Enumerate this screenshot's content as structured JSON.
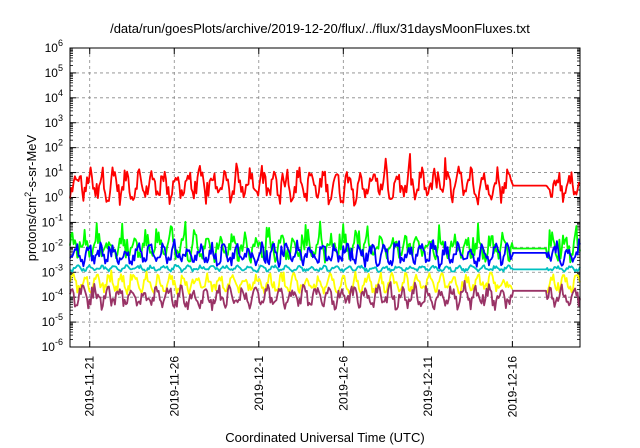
{
  "chart_data": {
    "type": "line",
    "title": "/data/run/goesPlots/archive/2019-12-20/flux/../flux/31daysMoonFluxes.txt",
    "xlabel": "Coordinated Universal Time (UTC)",
    "ylabel_parts": {
      "base": "protons/cm",
      "exp": "2",
      "rest": "-s-sr-MeV"
    },
    "yscale": "log",
    "ylim": [
      1e-06,
      1000000.0
    ],
    "yticks": [
      {
        "base": "10",
        "exp": "6"
      },
      {
        "base": "10",
        "exp": "5"
      },
      {
        "base": "10",
        "exp": "4"
      },
      {
        "base": "10",
        "exp": "3"
      },
      {
        "base": "10",
        "exp": "2"
      },
      {
        "base": "10",
        "exp": "1"
      },
      {
        "base": "10",
        "exp": "0"
      },
      {
        "base": "10",
        "exp": "-1"
      },
      {
        "base": "10",
        "exp": "-2"
      },
      {
        "base": "10",
        "exp": "-3"
      },
      {
        "base": "10",
        "exp": "-4"
      },
      {
        "base": "10",
        "exp": "-5"
      },
      {
        "base": "10",
        "exp": "-6"
      }
    ],
    "xlim": [
      "2019-11-19T20:00",
      "2019-12-20T00:00"
    ],
    "xticks": [
      "2019-11-21",
      "2019-11-26",
      "2019-12-1",
      "2019-12-6",
      "2019-12-11",
      "2019-12-16"
    ],
    "xtick_dates": [
      "2019-11-21",
      "2019-11-26",
      "2019-12-01",
      "2019-12-06",
      "2019-12-11",
      "2019-12-16"
    ],
    "grid": true,
    "data_gap": [
      "2019-12-16",
      "2019-12-18"
    ],
    "series": [
      {
        "color": "#ff0000",
        "level": 3.0,
        "spread": 0.45,
        "peaks": 0.55,
        "gap_value": 3.0,
        "gap_line": true
      },
      {
        "color": "#00ff00",
        "level": 0.01,
        "spread": 0.35,
        "peaks": 0.7,
        "gap_value": 0.009,
        "gap_line": true
      },
      {
        "color": "#0000ff",
        "level": 0.005,
        "spread": 0.3,
        "peaks": 0.35,
        "gap_value": 0.006,
        "gap_line": true
      },
      {
        "color": "#00c0c0",
        "level": 0.0014,
        "spread": 0.08,
        "peaks": 0.05,
        "gap_value": 0.0013,
        "gap_line": true
      },
      {
        "color": "#ffff00",
        "level": 0.00035,
        "spread": 0.25,
        "peaks": 0.2,
        "gap_value": 0.00035,
        "gap_line": false
      },
      {
        "color": "#993366",
        "level": 0.0001,
        "spread": 0.3,
        "peaks": 0.2,
        "gap_value": 0.00018,
        "gap_line": true
      }
    ]
  }
}
